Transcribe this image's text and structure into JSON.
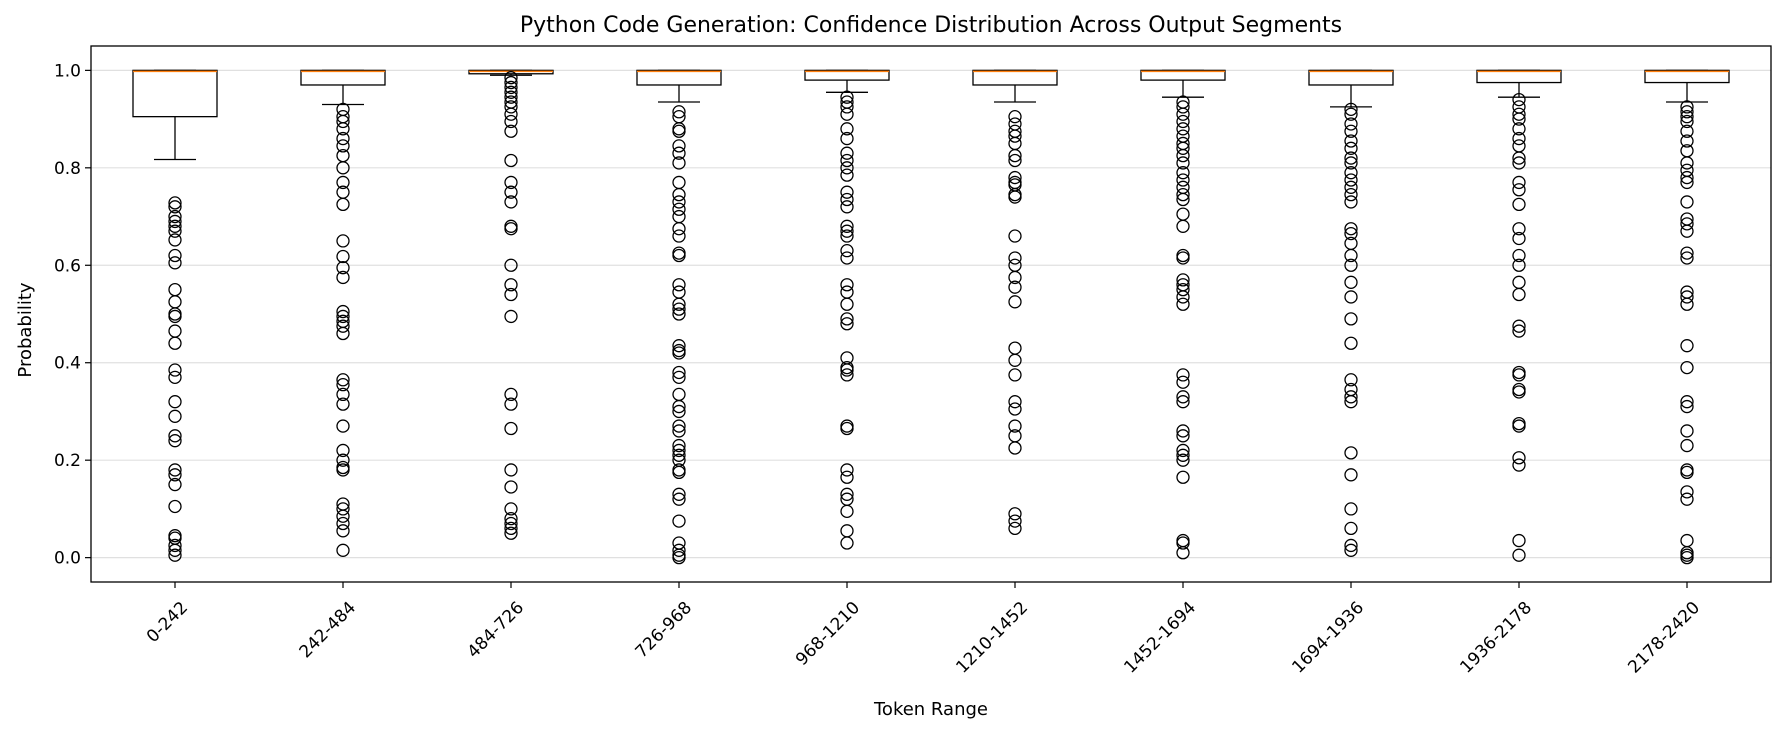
{
  "chart_data": {
    "type": "box",
    "title": "Python Code Generation: Confidence Distribution Across Output Segments",
    "xlabel": "Token Range",
    "ylabel": "Probability",
    "ylim": [
      -0.05,
      1.05
    ],
    "yticks": [
      0.0,
      0.2,
      0.4,
      0.6,
      0.8,
      1.0
    ],
    "ytick_labels": [
      "0.0",
      "0.2",
      "0.4",
      "0.6",
      "0.8",
      "1.0"
    ],
    "grid": "horizontal",
    "colors": {
      "median": "#ff7f0e",
      "box": "#000000",
      "grid": "#e0e0e0"
    },
    "categories": [
      "0-242",
      "242-484",
      "484-726",
      "726-968",
      "968-1210",
      "1210-1452",
      "1452-1694",
      "1694-1936",
      "1936-2178",
      "2178-2420"
    ],
    "boxes": [
      {
        "q1": 0.905,
        "median": 1.0,
        "q3": 1.0,
        "whisker_low": 0.817,
        "whisker_high": 1.0,
        "outliers": [
          0.728,
          0.72,
          0.7,
          0.69,
          0.68,
          0.67,
          0.652,
          0.62,
          0.605,
          0.55,
          0.525,
          0.5,
          0.495,
          0.465,
          0.44,
          0.385,
          0.37,
          0.32,
          0.29,
          0.25,
          0.24,
          0.18,
          0.17,
          0.15,
          0.105,
          0.045,
          0.04,
          0.025,
          0.015,
          0.005
        ]
      },
      {
        "q1": 0.97,
        "median": 1.0,
        "q3": 1.0,
        "whisker_low": 0.93,
        "whisker_high": 1.0,
        "outliers": [
          0.92,
          0.905,
          0.895,
          0.88,
          0.86,
          0.845,
          0.825,
          0.8,
          0.77,
          0.75,
          0.725,
          0.65,
          0.618,
          0.595,
          0.575,
          0.505,
          0.495,
          0.485,
          0.475,
          0.46,
          0.365,
          0.355,
          0.335,
          0.315,
          0.27,
          0.22,
          0.2,
          0.185,
          0.18,
          0.11,
          0.1,
          0.085,
          0.07,
          0.055,
          0.015
        ]
      },
      {
        "q1": 0.993,
        "median": 1.0,
        "q3": 1.0,
        "whisker_low": 0.99,
        "whisker_high": 1.0,
        "outliers": [
          0.985,
          0.975,
          0.965,
          0.955,
          0.945,
          0.935,
          0.925,
          0.91,
          0.895,
          0.875,
          0.815,
          0.77,
          0.75,
          0.73,
          0.68,
          0.675,
          0.6,
          0.56,
          0.54,
          0.495,
          0.335,
          0.315,
          0.265,
          0.18,
          0.145,
          0.1,
          0.08,
          0.07,
          0.06,
          0.05
        ]
      },
      {
        "q1": 0.97,
        "median": 1.0,
        "q3": 1.0,
        "whisker_low": 0.935,
        "whisker_high": 1.0,
        "outliers": [
          0.915,
          0.905,
          0.88,
          0.875,
          0.845,
          0.83,
          0.81,
          0.77,
          0.745,
          0.73,
          0.715,
          0.7,
          0.675,
          0.66,
          0.625,
          0.62,
          0.56,
          0.545,
          0.52,
          0.51,
          0.5,
          0.435,
          0.425,
          0.42,
          0.38,
          0.37,
          0.335,
          0.31,
          0.3,
          0.27,
          0.26,
          0.23,
          0.22,
          0.21,
          0.2,
          0.18,
          0.175,
          0.13,
          0.12,
          0.075,
          0.03,
          0.015,
          0.005,
          0.0
        ]
      },
      {
        "q1": 0.98,
        "median": 1.0,
        "q3": 1.0,
        "whisker_low": 0.955,
        "whisker_high": 1.0,
        "outliers": [
          0.945,
          0.935,
          0.925,
          0.91,
          0.88,
          0.86,
          0.83,
          0.815,
          0.8,
          0.785,
          0.75,
          0.735,
          0.72,
          0.68,
          0.67,
          0.66,
          0.63,
          0.615,
          0.56,
          0.545,
          0.52,
          0.49,
          0.48,
          0.41,
          0.39,
          0.385,
          0.375,
          0.27,
          0.265,
          0.18,
          0.165,
          0.13,
          0.12,
          0.095,
          0.055,
          0.03
        ]
      },
      {
        "q1": 0.97,
        "median": 1.0,
        "q3": 1.0,
        "whisker_low": 0.935,
        "whisker_high": 1.0,
        "outliers": [
          0.905,
          0.89,
          0.875,
          0.865,
          0.85,
          0.825,
          0.815,
          0.78,
          0.77,
          0.765,
          0.745,
          0.74,
          0.66,
          0.615,
          0.6,
          0.575,
          0.555,
          0.525,
          0.43,
          0.405,
          0.375,
          0.32,
          0.305,
          0.27,
          0.25,
          0.225,
          0.09,
          0.075,
          0.06
        ]
      },
      {
        "q1": 0.98,
        "median": 1.0,
        "q3": 1.0,
        "whisker_low": 0.945,
        "whisker_high": 1.0,
        "outliers": [
          0.935,
          0.925,
          0.91,
          0.895,
          0.88,
          0.865,
          0.85,
          0.84,
          0.825,
          0.81,
          0.79,
          0.775,
          0.76,
          0.745,
          0.735,
          0.705,
          0.68,
          0.62,
          0.615,
          0.57,
          0.56,
          0.55,
          0.535,
          0.52,
          0.375,
          0.36,
          0.33,
          0.32,
          0.26,
          0.25,
          0.22,
          0.21,
          0.2,
          0.165,
          0.035,
          0.03,
          0.01
        ]
      },
      {
        "q1": 0.97,
        "median": 1.0,
        "q3": 1.0,
        "whisker_low": 0.925,
        "whisker_high": 1.0,
        "outliers": [
          0.92,
          0.91,
          0.89,
          0.875,
          0.855,
          0.84,
          0.82,
          0.81,
          0.79,
          0.775,
          0.76,
          0.745,
          0.73,
          0.675,
          0.665,
          0.645,
          0.62,
          0.6,
          0.565,
          0.535,
          0.49,
          0.44,
          0.365,
          0.345,
          0.33,
          0.32,
          0.215,
          0.17,
          0.1,
          0.06,
          0.025,
          0.015
        ]
      },
      {
        "q1": 0.975,
        "median": 1.0,
        "q3": 1.0,
        "whisker_low": 0.945,
        "whisker_high": 1.0,
        "outliers": [
          0.94,
          0.925,
          0.91,
          0.9,
          0.88,
          0.86,
          0.845,
          0.82,
          0.81,
          0.77,
          0.755,
          0.725,
          0.675,
          0.655,
          0.62,
          0.6,
          0.565,
          0.54,
          0.475,
          0.465,
          0.38,
          0.375,
          0.345,
          0.34,
          0.275,
          0.27,
          0.205,
          0.19,
          0.035,
          0.005
        ]
      },
      {
        "q1": 0.975,
        "median": 1.0,
        "q3": 1.0,
        "whisker_low": 0.935,
        "whisker_high": 1.0,
        "outliers": [
          0.925,
          0.915,
          0.905,
          0.895,
          0.875,
          0.855,
          0.835,
          0.81,
          0.795,
          0.78,
          0.77,
          0.73,
          0.695,
          0.685,
          0.67,
          0.625,
          0.615,
          0.545,
          0.535,
          0.52,
          0.435,
          0.39,
          0.32,
          0.31,
          0.26,
          0.23,
          0.18,
          0.175,
          0.135,
          0.12,
          0.035,
          0.01,
          0.005,
          0.0
        ]
      }
    ]
  }
}
